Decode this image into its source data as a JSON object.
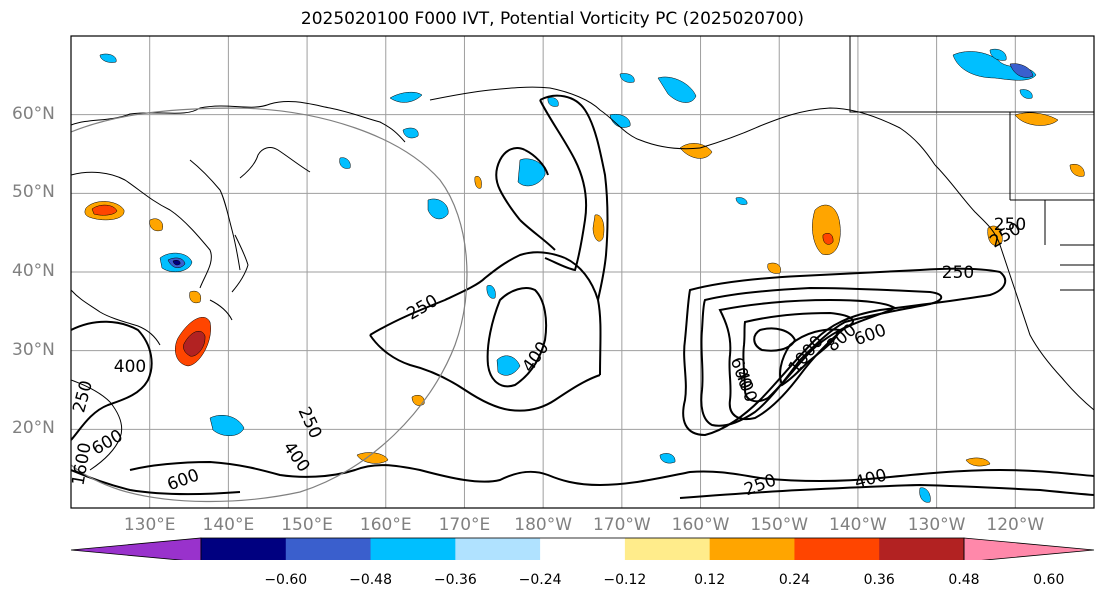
{
  "title": "2025020100 F000 IVT, Potential Vorticity PC (2025020700)",
  "lat_labels": [
    "60°N",
    "50°N",
    "40°N",
    "30°N",
    "20°N"
  ],
  "lon_labels": [
    "130°E",
    "140°E",
    "150°E",
    "160°E",
    "170°E",
    "180°W",
    "170°W",
    "160°W",
    "150°W",
    "140°W",
    "130°W",
    "120°W"
  ],
  "map_extent": {
    "lon_min": 120,
    "lon_max": 250,
    "lat_min": 10,
    "lat_max": 70
  },
  "contour_labels": [
    "250",
    "400",
    "600",
    "250",
    "400",
    "600",
    "1600",
    "250",
    "400",
    "600",
    "1000",
    "800",
    "600",
    "400",
    "250",
    "400",
    "250",
    "250",
    "250"
  ],
  "colorbar": {
    "colors": [
      "#9932cc",
      "#000080",
      "#3a5fcd",
      "#00bfff",
      "#b0e2ff",
      "#ffffff",
      "#ffec8b",
      "#ffa500",
      "#ff4500",
      "#b22222",
      "#ff88aa"
    ],
    "ticks": [
      "−0.60",
      "−0.48",
      "−0.36",
      "−0.24",
      "−0.12",
      "0.12",
      "0.24",
      "0.36",
      "0.48",
      "0.60"
    ]
  }
}
